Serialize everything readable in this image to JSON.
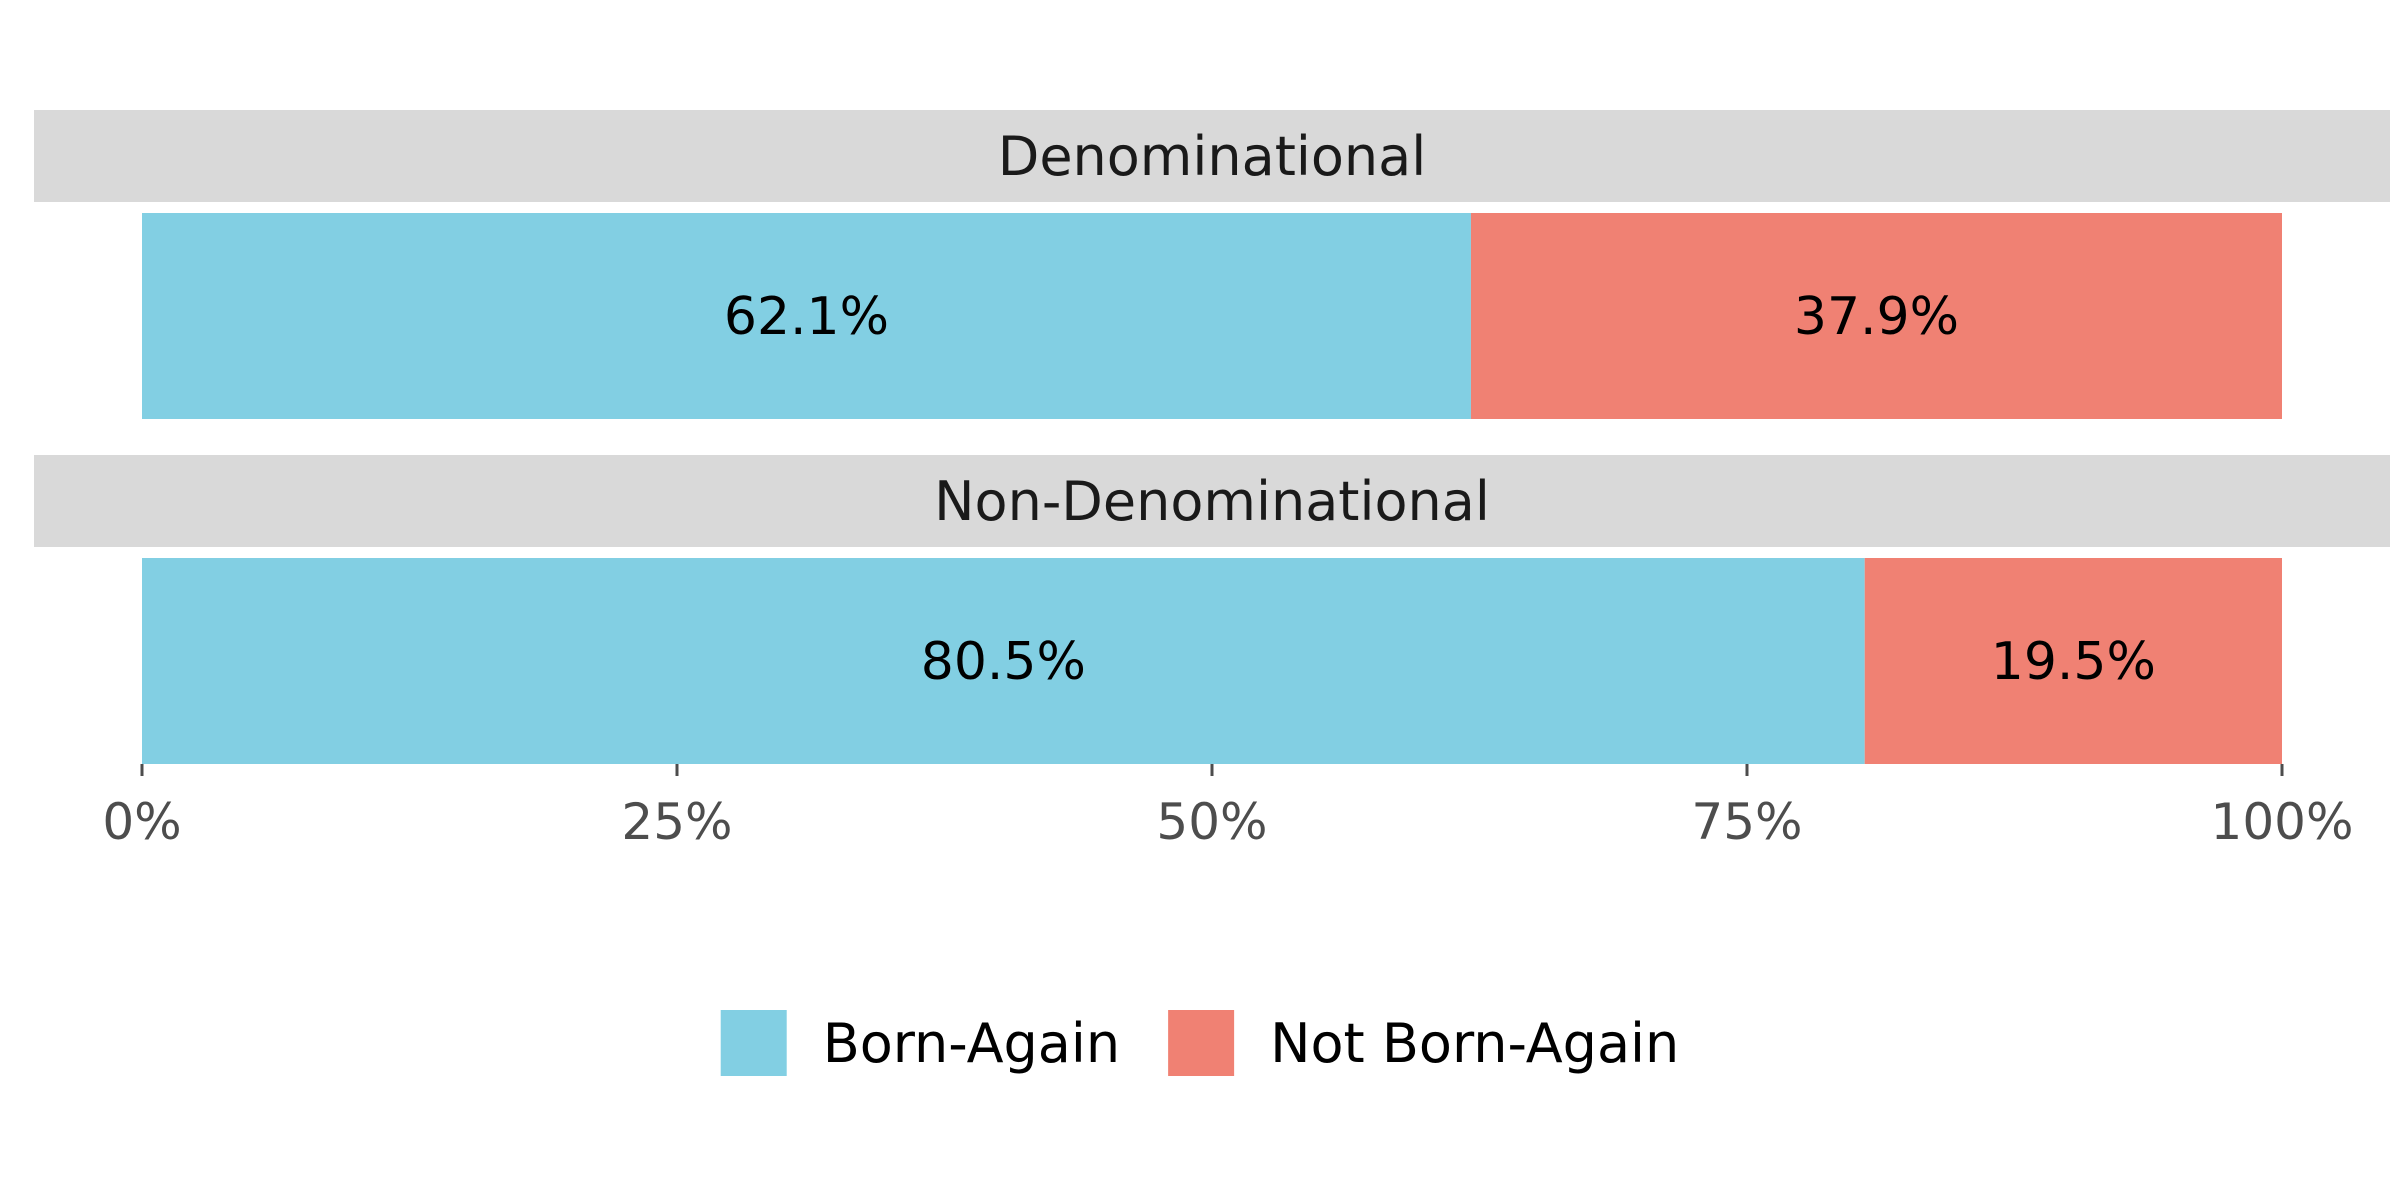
{
  "chart_data": {
    "type": "bar",
    "orientation": "horizontal",
    "stacked": true,
    "panels": [
      {
        "label": "Denominational",
        "segments": [
          {
            "series": "Born-Again",
            "value": 62.1,
            "label": "62.1%"
          },
          {
            "series": "Not Born-Again",
            "value": 37.9,
            "label": "37.9%"
          }
        ]
      },
      {
        "label": "Non-Denominational",
        "segments": [
          {
            "series": "Born-Again",
            "value": 80.5,
            "label": "80.5%"
          },
          {
            "series": "Not Born-Again",
            "value": 19.5,
            "label": "19.5%"
          }
        ]
      }
    ],
    "series": [
      {
        "name": "Born-Again",
        "color": "#82cfe3"
      },
      {
        "name": "Not Born-Again",
        "color": "#f08173"
      }
    ],
    "xlim": [
      0,
      100
    ],
    "xticks": [
      0,
      25,
      50,
      75,
      100
    ],
    "xtick_labels": [
      "0%",
      "25%",
      "50%",
      "75%",
      "100%"
    ],
    "grid": false,
    "legend_position": "bottom"
  }
}
